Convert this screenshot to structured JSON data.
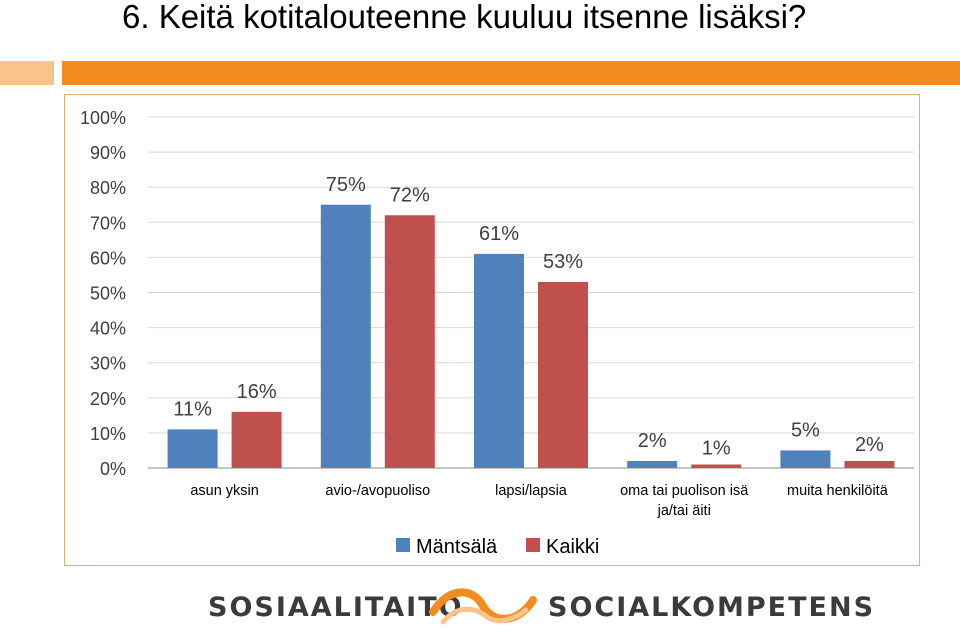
{
  "title": "6. Keitä kotitalouteenne kuuluu itsenne lisäksi?",
  "chart_data": {
    "type": "bar",
    "categories": [
      "asun yksin",
      "avio-/avopuoliso",
      "lapsi/lapsia",
      "oma tai puolison isä ja/tai äiti",
      "muita henkilöitä"
    ],
    "series": [
      {
        "name": "Mäntsälä",
        "color": "#4f81bd",
        "values": [
          11,
          75,
          61,
          2,
          5
        ]
      },
      {
        "name": "Kaikki",
        "color": "#c0504d",
        "values": [
          16,
          72,
          53,
          1,
          2
        ]
      }
    ],
    "data_labels": [
      [
        "11%",
        "75%",
        "61%",
        "2%",
        "5%"
      ],
      [
        "16%",
        "72%",
        "53%",
        "1%",
        "2%"
      ]
    ],
    "y_ticks": [
      "0%",
      "10%",
      "20%",
      "30%",
      "40%",
      "50%",
      "60%",
      "70%",
      "80%",
      "90%",
      "100%"
    ],
    "ylim": [
      0,
      100
    ],
    "grid": true,
    "legend_position": "bottom"
  },
  "footer": {
    "left_text": "SOSIAALITAITO",
    "right_text": "SOCIALKOMPETENS"
  },
  "colors": {
    "accent_orange": "#f28c1e",
    "accent_light": "#f9c48a",
    "frame_border": "#d8b070"
  }
}
